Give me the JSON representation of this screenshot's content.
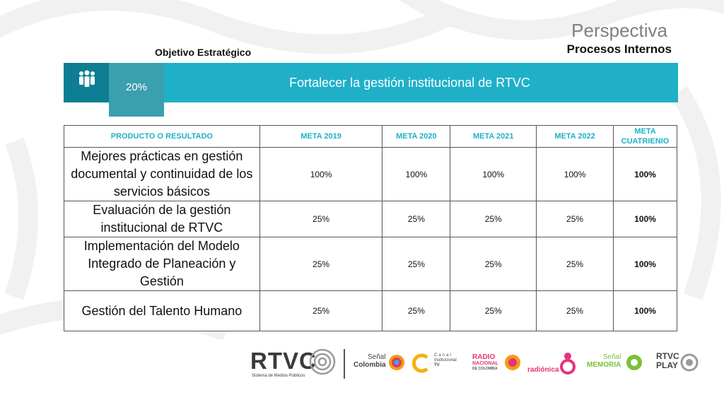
{
  "header": {
    "perspective_title": "Perspectiva",
    "perspective_sub": "Procesos Internos",
    "objective_label": "Objetivo Estratégico"
  },
  "banner": {
    "percent": "20%",
    "title": "Fortalecer la gestión institucional de RTVC",
    "icon": "people-group-icon",
    "color": "#1fb0c8",
    "dark_color": "#0d7e93"
  },
  "table": {
    "headers": [
      "PRODUCTO O RESULTADO",
      "META 2019",
      "META 2020",
      "META 2021",
      "META 2022",
      "META CUATRIENIO"
    ],
    "rows": [
      {
        "product": "Mejores prácticas en gestión documental y continuidad de los servicios básicos",
        "m2019": "100%",
        "m2020": "100%",
        "m2021": "100%",
        "m2022": "100%",
        "total": "100%"
      },
      {
        "product": "Evaluación de la gestión institucional de RTVC",
        "m2019": "25%",
        "m2020": "25%",
        "m2021": "25%",
        "m2022": "25%",
        "total": "100%"
      },
      {
        "product": "Implementación del Modelo Integrado de Planeación y Gestión",
        "m2019": "25%",
        "m2020": "25%",
        "m2021": "25%",
        "m2022": "25%",
        "total": "100%"
      },
      {
        "product": "Gestión del Talento Humano",
        "m2019": "25%",
        "m2020": "25%",
        "m2021": "25%",
        "m2022": "25%",
        "total": "100%"
      }
    ]
  },
  "logos": {
    "rtvc": "RTVC",
    "rtvc_sub": "Sistema de Medios Públicos",
    "senal_colombia_1": "Señal",
    "senal_colombia_2": "Colombia",
    "canal_1": "Canal",
    "canal_2": "Institucional",
    "canal_3": "TV",
    "radio_1": "RADIO",
    "radio_2": "NACIONAL",
    "radio_3": "DE COLOMBIA",
    "radionica": "radiónica",
    "senal_memoria_1": "Señal",
    "senal_memoria_2": "MEMORIA",
    "rtvc_play_1": "RTVC",
    "rtvc_play_2": "PLAY"
  }
}
